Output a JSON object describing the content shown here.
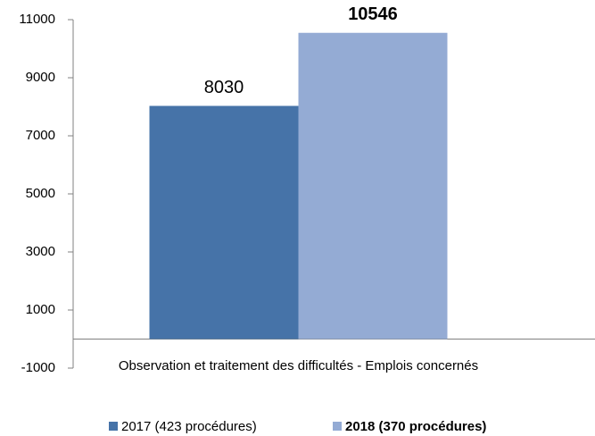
{
  "chart_data": {
    "type": "bar",
    "categories": [
      "Observation et traitement des difficultés - Emplois concernés"
    ],
    "series": [
      {
        "name": "2017 (423 procédures)",
        "color": "#4673a8",
        "values": [
          8030
        ]
      },
      {
        "name": "2018 (370 procédures)",
        "color": "#94abd4",
        "values": [
          10546
        ]
      }
    ],
    "ylim": [
      -1000,
      11000
    ],
    "yticks": [
      -1000,
      1000,
      3000,
      5000,
      7000,
      9000,
      11000
    ],
    "grid": false,
    "legend": "bottom"
  }
}
